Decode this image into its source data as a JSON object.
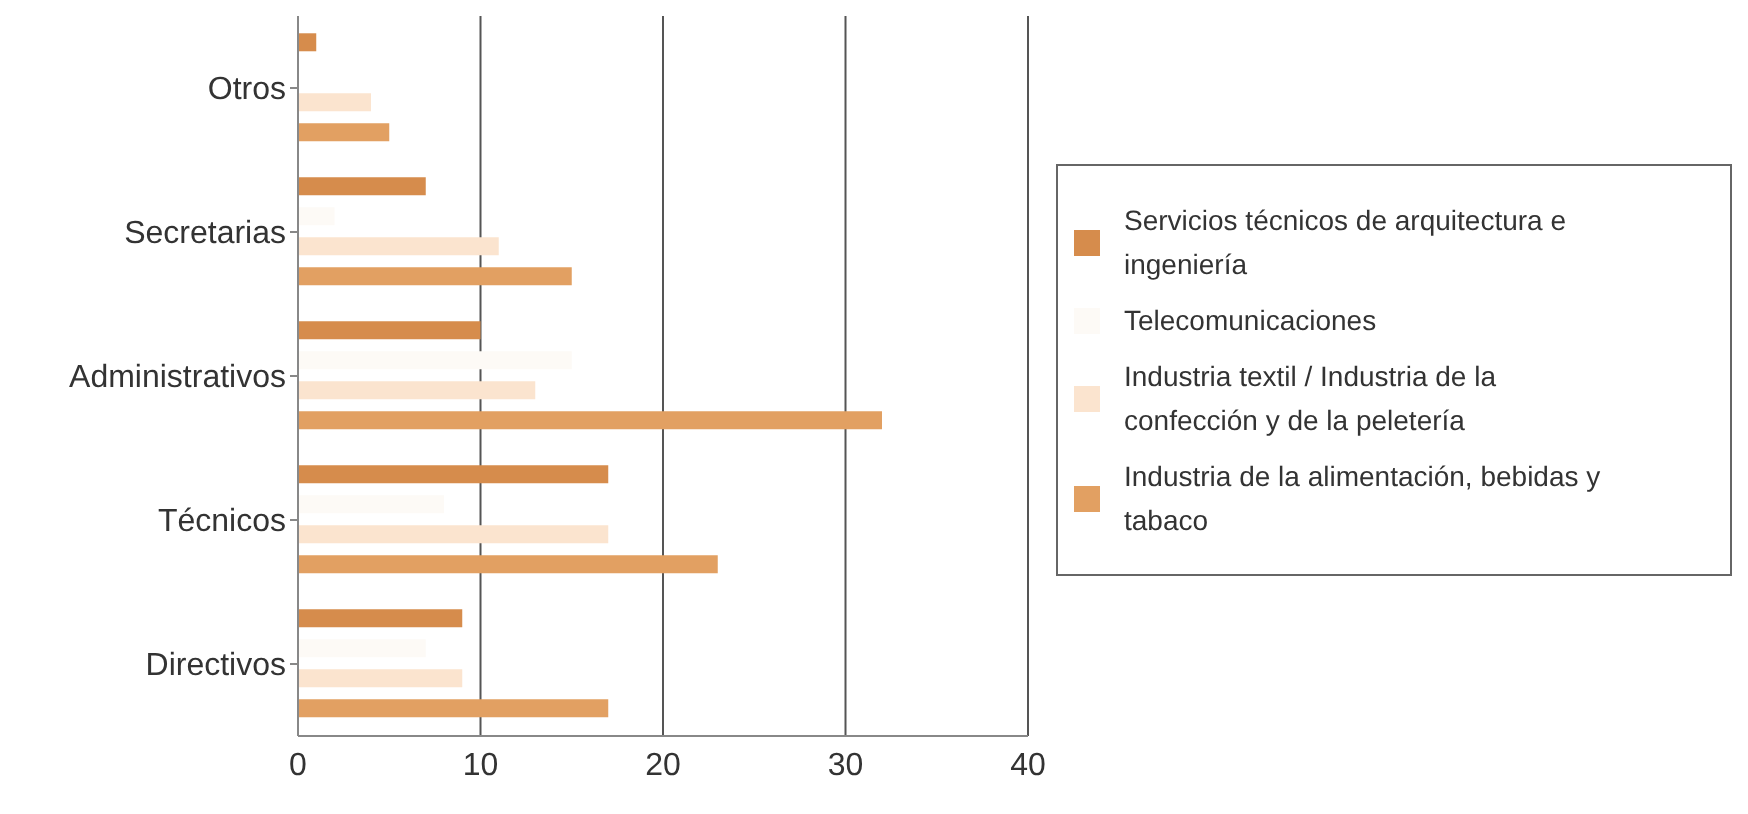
{
  "chart_data": {
    "type": "bar",
    "orientation": "horizontal",
    "categories": [
      "Otros",
      "Secretarias",
      "Administrativos",
      "Técnicos",
      "Directivos"
    ],
    "series": [
      {
        "name": "Servicios técnicos de arquitectura e ingeniería",
        "color": "#d68c4c",
        "values": [
          1,
          7,
          10,
          17,
          9
        ]
      },
      {
        "name": "Telecomunicaciones",
        "color": "#fdfaf6",
        "values": [
          0,
          2,
          15,
          8,
          7
        ]
      },
      {
        "name": "Industria textil / Industria de la confección y de la peletería",
        "color": "#fbe4cf",
        "values": [
          4,
          11,
          13,
          17,
          9
        ]
      },
      {
        "name": "Industria de la alimentación, bebidas y tabaco",
        "color": "#e2a062",
        "values": [
          5,
          15,
          32,
          23,
          17
        ]
      }
    ],
    "xlim": [
      0,
      40
    ],
    "xticks": [
      0,
      10,
      20,
      30,
      40
    ],
    "grid": "x",
    "legend": "right"
  }
}
